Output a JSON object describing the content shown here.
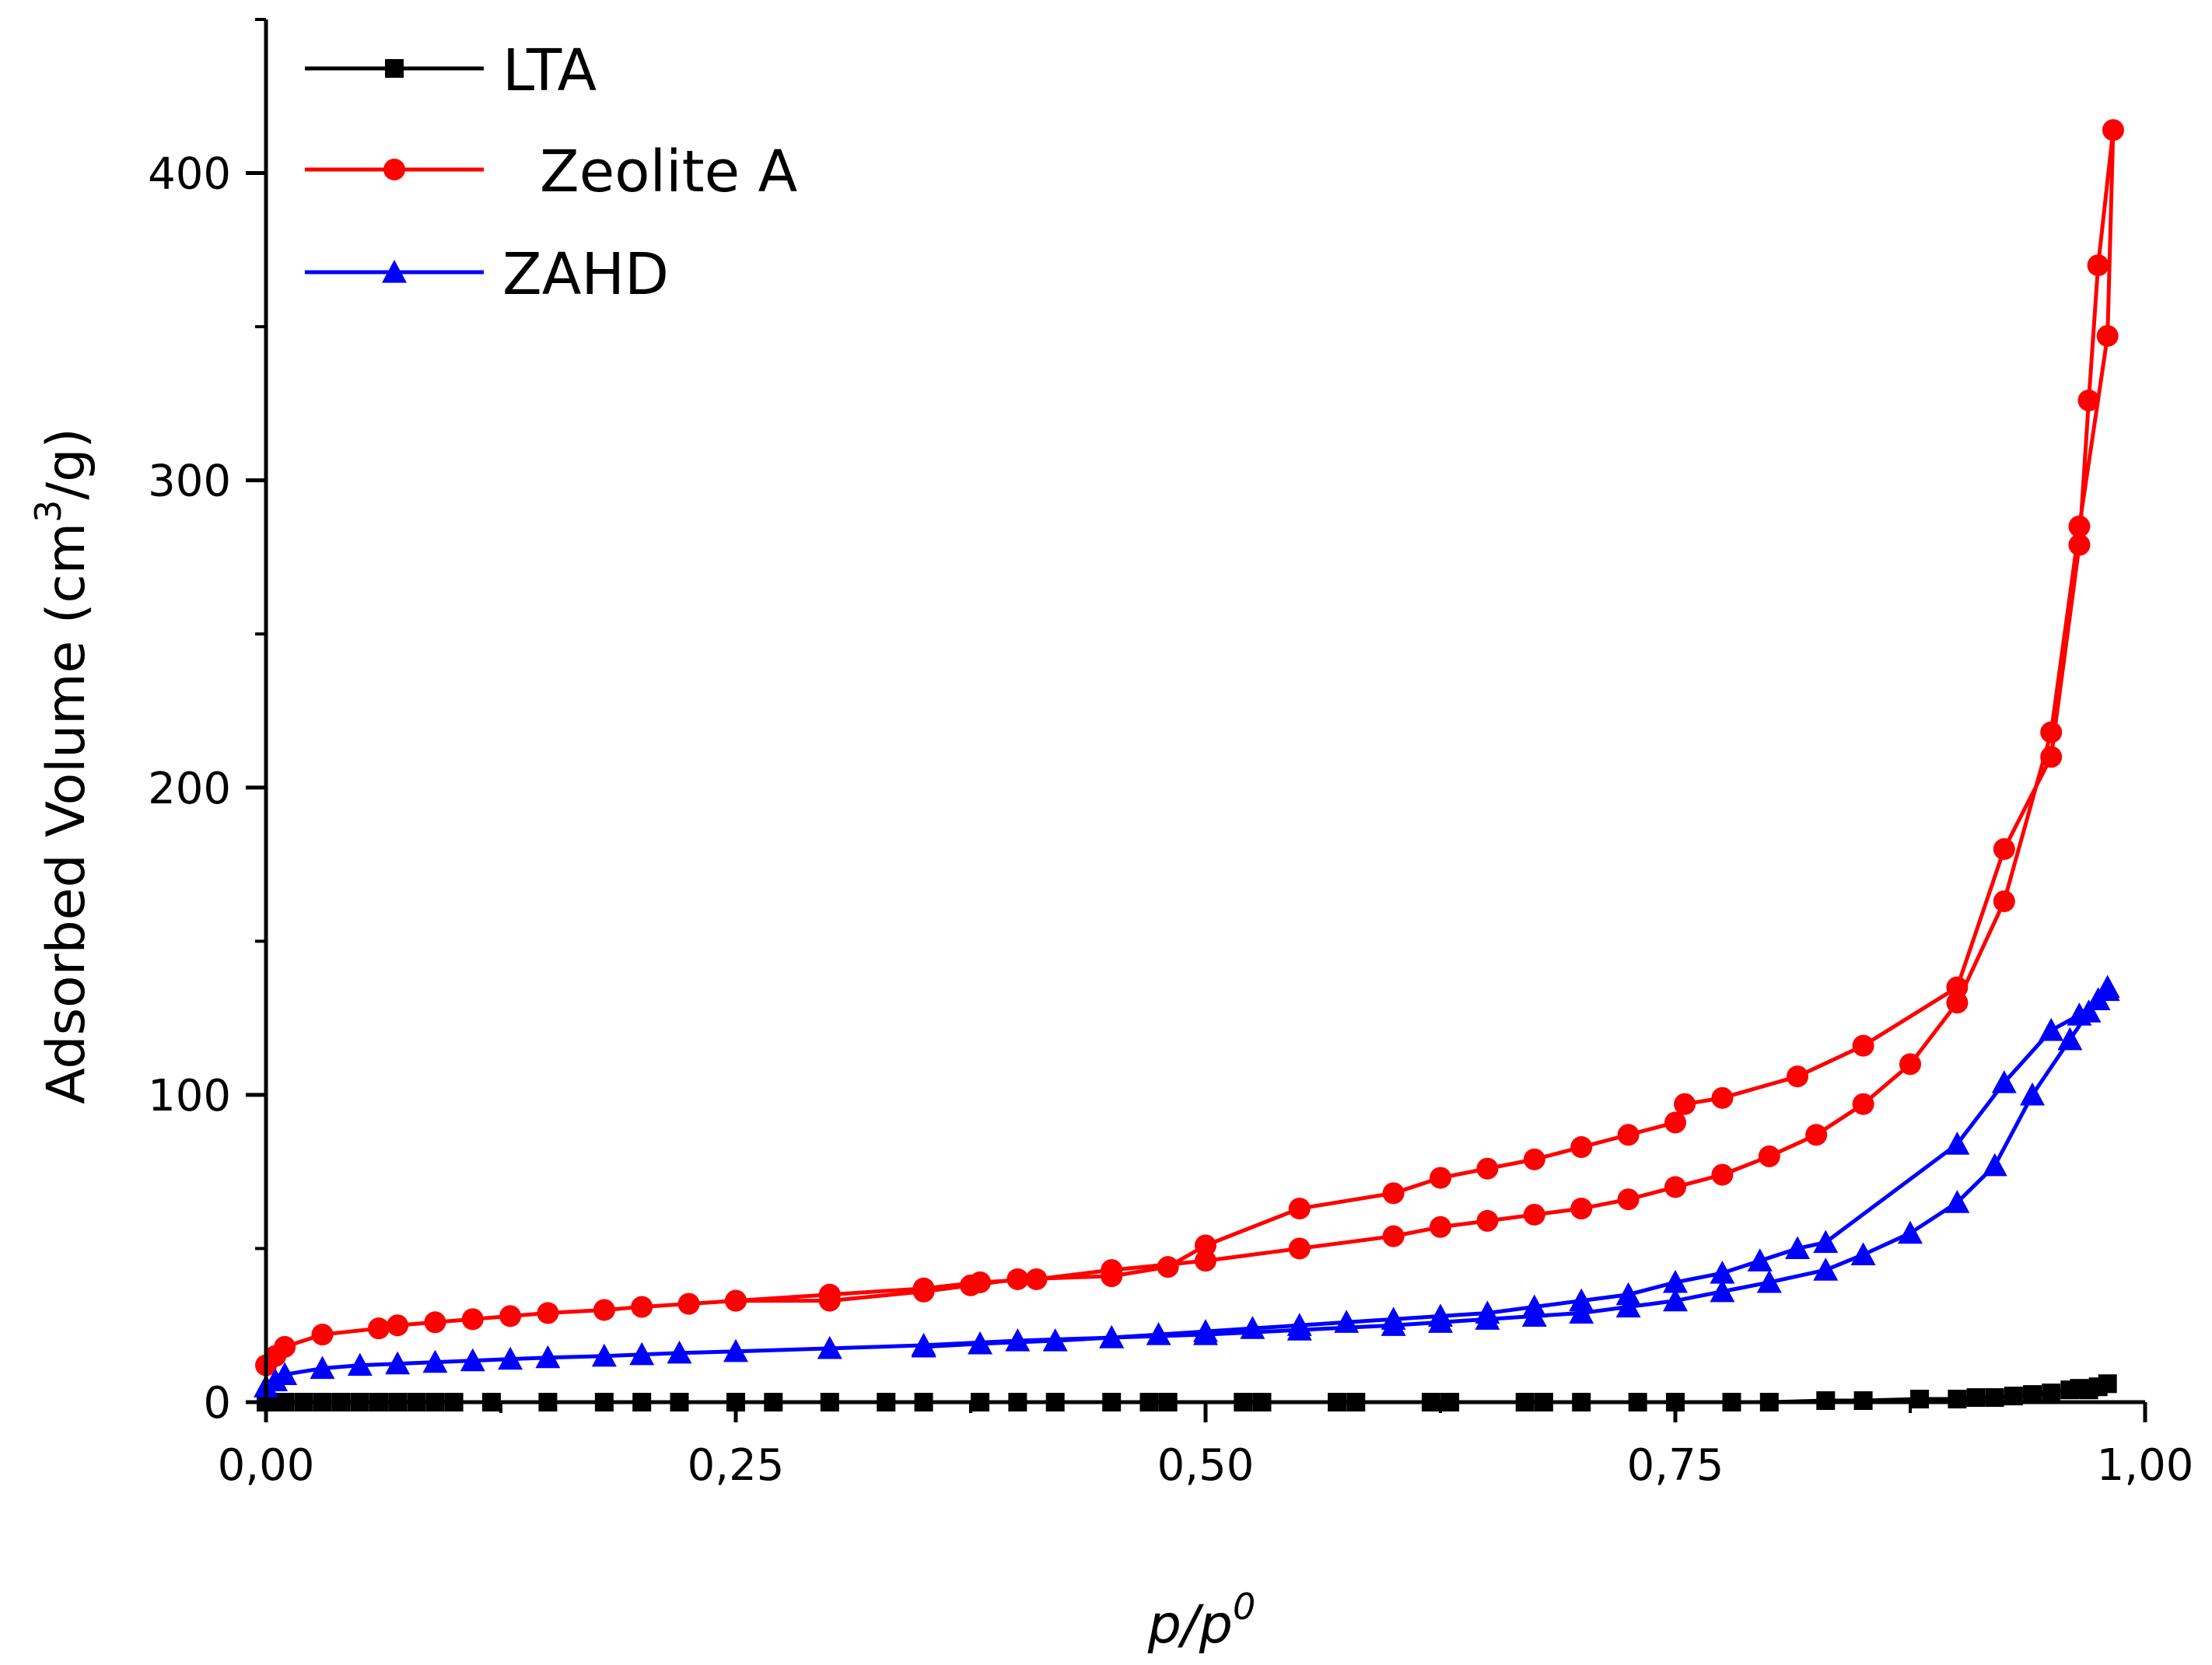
{
  "chart_data": {
    "type": "line",
    "title": "",
    "xlabel": "p/p",
    "xlabel_superscript": "0",
    "ylabel": "Adsorbed Volume (cm",
    "ylabel_superscript": "3",
    "ylabel_suffix": "/g)",
    "xlim": [
      0.0,
      1.0
    ],
    "ylim": [
      0,
      450
    ],
    "xticks": [
      0.0,
      0.25,
      0.5,
      0.75,
      1.0
    ],
    "xtick_labels": [
      "0,00",
      "0,25",
      "0,50",
      "0,75",
      "1,00"
    ],
    "yticks": [
      0,
      100,
      200,
      300,
      400
    ],
    "ytick_labels": [
      "0",
      "100",
      "200",
      "300",
      "400"
    ],
    "grid": false,
    "legend_position": "top-left",
    "series": [
      {
        "name": "LTA",
        "color": "#000000",
        "marker": "square",
        "x": [
          0.0,
          0.005,
          0.01,
          0.02,
          0.03,
          0.04,
          0.05,
          0.06,
          0.07,
          0.08,
          0.09,
          0.1,
          0.12,
          0.15,
          0.18,
          0.2,
          0.22,
          0.25,
          0.27,
          0.3,
          0.33,
          0.35,
          0.38,
          0.4,
          0.42,
          0.45,
          0.47,
          0.48,
          0.52,
          0.53,
          0.57,
          0.58,
          0.62,
          0.63,
          0.67,
          0.68,
          0.7,
          0.73,
          0.75,
          0.78,
          0.8,
          0.83,
          0.85,
          0.88,
          0.9,
          0.91,
          0.92,
          0.93,
          0.94,
          0.95,
          0.96,
          0.965,
          0.97,
          0.975,
          0.98
        ],
        "y": [
          0,
          0,
          0,
          0,
          0,
          0,
          0,
          0,
          0,
          0,
          0,
          0,
          0,
          0,
          0,
          0,
          0,
          0,
          0,
          0,
          0,
          0,
          0,
          0,
          0,
          0,
          0,
          0,
          0,
          0,
          0,
          0,
          0,
          0,
          0,
          0,
          0,
          0,
          0,
          0,
          0,
          0.5,
          0.5,
          1,
          1,
          1.5,
          1.5,
          2,
          2.5,
          3,
          4,
          4.5,
          4,
          5,
          6
        ]
      },
      {
        "name": "Zeolite A",
        "color": "#ff0000",
        "marker": "circle",
        "x": [
          0.0,
          0.005,
          0.01,
          0.03,
          0.06,
          0.07,
          0.09,
          0.11,
          0.13,
          0.15,
          0.18,
          0.2,
          0.225,
          0.25,
          0.3,
          0.35,
          0.38,
          0.41,
          0.45,
          0.5,
          0.55,
          0.6,
          0.625,
          0.65,
          0.675,
          0.7,
          0.725,
          0.75,
          0.775,
          0.8,
          0.825,
          0.85,
          0.875,
          0.9,
          0.925,
          0.95,
          0.965,
          0.98,
          0.983,
          0.975,
          0.97,
          0.965,
          0.95,
          0.925,
          0.9,
          0.85,
          0.815,
          0.775,
          0.755,
          0.75,
          0.725,
          0.7,
          0.675,
          0.65,
          0.625,
          0.6,
          0.55,
          0.5,
          0.48,
          0.45,
          0.4,
          0.375,
          0.35,
          0.3,
          0.25
        ],
        "y": [
          12,
          15,
          18,
          22,
          24,
          25,
          26,
          27,
          28,
          29,
          30,
          31,
          32,
          33,
          35,
          37,
          39,
          40,
          43,
          46,
          50,
          54,
          57,
          59,
          61,
          63,
          66,
          70,
          74,
          80,
          87,
          97,
          110,
          130,
          163,
          218,
          285,
          347,
          414,
          370,
          326,
          279,
          210,
          180,
          135,
          116,
          106,
          99,
          97,
          91,
          87,
          83,
          79,
          76,
          73,
          68,
          63,
          51,
          44,
          41,
          40,
          38,
          36,
          33,
          33
        ]
      },
      {
        "name": "ZAHD",
        "color": "#0000ff",
        "marker": "triangle",
        "x": [
          0.0,
          0.005,
          0.01,
          0.03,
          0.05,
          0.07,
          0.09,
          0.11,
          0.13,
          0.15,
          0.18,
          0.2,
          0.22,
          0.25,
          0.3,
          0.35,
          0.4,
          0.45,
          0.5,
          0.55,
          0.6,
          0.625,
          0.65,
          0.675,
          0.7,
          0.725,
          0.75,
          0.775,
          0.8,
          0.83,
          0.85,
          0.875,
          0.9,
          0.92,
          0.94,
          0.96,
          0.97,
          0.98,
          0.98,
          0.975,
          0.965,
          0.95,
          0.925,
          0.9,
          0.83,
          0.815,
          0.795,
          0.775,
          0.75,
          0.725,
          0.7,
          0.675,
          0.65,
          0.625,
          0.6,
          0.575,
          0.55,
          0.525,
          0.5,
          0.475,
          0.45,
          0.42,
          0.38,
          0.35
        ],
        "y": [
          5,
          7,
          9,
          11,
          12,
          12.5,
          13,
          13.5,
          14,
          14.5,
          15,
          15.5,
          16,
          16.5,
          17.5,
          18.5,
          20,
          21,
          22,
          23.5,
          25,
          26,
          27,
          28,
          29,
          31,
          33,
          36,
          39,
          43,
          48,
          55,
          65,
          77,
          100,
          118,
          127,
          135,
          134,
          131,
          126,
          121,
          104,
          84,
          52,
          50,
          46,
          42,
          39,
          35,
          33,
          31,
          29,
          28,
          27,
          26,
          25,
          24,
          23,
          22,
          21,
          20,
          19,
          18
        ]
      }
    ]
  }
}
